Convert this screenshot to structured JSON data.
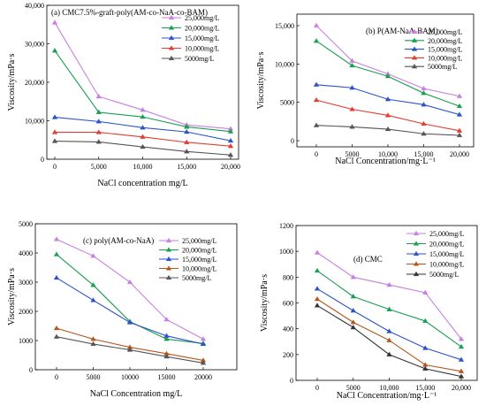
{
  "chart_data": [
    {
      "type": "line",
      "title": "(a) CMC7.5%-graft-poly(AM-co-NaA-co-BAM)",
      "xlabel": "NaCl concentration mg/L",
      "ylabel": "Viscosity/mPa·s",
      "categories": [
        "0",
        "5,000",
        "10,000",
        "15,000",
        "20,000"
      ],
      "yticks": [
        "0",
        "10,000",
        "20,000",
        "30,000",
        "40,000"
      ],
      "ylim": [
        0,
        40000
      ],
      "legend": "top-right",
      "series": [
        {
          "name": "25,000mg/L",
          "color": "#c77fe0",
          "values": [
            35500,
            16300,
            12800,
            8900,
            7900
          ]
        },
        {
          "name": "20,000mg/L",
          "color": "#1a9e52",
          "values": [
            28200,
            12200,
            11000,
            8400,
            7200
          ]
        },
        {
          "name": "15,000mg/L",
          "color": "#2b52c8",
          "values": [
            10900,
            9800,
            8200,
            7100,
            4800
          ]
        },
        {
          "name": "10,000mg/L",
          "color": "#e53b30",
          "values": [
            7000,
            7000,
            5800,
            4400,
            3400
          ]
        },
        {
          "name": "5000mg/L",
          "color": "#555555",
          "values": [
            4700,
            4500,
            3200,
            2000,
            1100
          ]
        }
      ]
    },
    {
      "type": "line",
      "title": "(b) P(AM-NaA-BAM)",
      "xlabel": "NaCl Concentration/mg·L⁻¹",
      "ylabel": "Viscosity/mPa·s",
      "categories": [
        "0",
        "5000",
        "10,000",
        "15,000",
        "20,000"
      ],
      "yticks": [
        "0",
        "5000",
        "10,000",
        "15,000"
      ],
      "ylim": [
        -800,
        16500
      ],
      "legend": "top-right",
      "series": [
        {
          "name": "25,000mg/L",
          "color": "#c77fe0",
          "values": [
            15000,
            10400,
            8700,
            6800,
            5800
          ]
        },
        {
          "name": "20,000mg/L",
          "color": "#1a9e52",
          "values": [
            13000,
            9800,
            8400,
            6200,
            4500
          ]
        },
        {
          "name": "15,000mg/L",
          "color": "#2b52c8",
          "values": [
            7300,
            6900,
            5400,
            4700,
            3400
          ]
        },
        {
          "name": "10,000mg/L",
          "color": "#e53b30",
          "values": [
            5300,
            4100,
            3300,
            2200,
            1300
          ]
        },
        {
          "name": "5000mg/L",
          "color": "#555555",
          "values": [
            2000,
            1800,
            1500,
            900,
            700
          ]
        }
      ]
    },
    {
      "type": "line",
      "title": "(c) poly(AM-co-NaA)",
      "xlabel": "NaCl Concentration mg/L",
      "ylabel": "Viscosity/mPa·s",
      "categories": [
        "0",
        "5000",
        "10000",
        "15000",
        "20000"
      ],
      "yticks": [
        "0",
        "1000",
        "2000",
        "3000",
        "4000",
        "5000"
      ],
      "ylim": [
        0,
        5000
      ],
      "legend": "top-right",
      "series": [
        {
          "name": "25,000mg/L",
          "color": "#c77fe0",
          "values": [
            4470,
            3900,
            3000,
            1720,
            1050
          ]
        },
        {
          "name": "20,000mg/L",
          "color": "#1a9e52",
          "values": [
            3950,
            2900,
            1650,
            1050,
            900
          ]
        },
        {
          "name": "15,000mg/L",
          "color": "#2b52c8",
          "values": [
            3150,
            2380,
            1620,
            1160,
            880
          ]
        },
        {
          "name": "10,000mg/L",
          "color": "#b5561c",
          "values": [
            1420,
            1050,
            770,
            550,
            320
          ]
        },
        {
          "name": "5000mg/L",
          "color": "#555555",
          "values": [
            1130,
            880,
            680,
            450,
            230
          ]
        }
      ]
    },
    {
      "type": "line",
      "title": "(d) CMC",
      "xlabel": "NaCl Concentration/mg·L⁻¹",
      "ylabel": "Viscosity/mPa·s",
      "categories": [
        "0",
        "5000",
        "10,000",
        "15,000",
        "20,000"
      ],
      "yticks": [
        "0",
        "200",
        "400",
        "600",
        "800",
        "1000",
        "1200"
      ],
      "ylim": [
        0,
        1200
      ],
      "legend": "top-right",
      "series": [
        {
          "name": "25,000mg/L",
          "color": "#c77fe0",
          "values": [
            990,
            800,
            740,
            680,
            320
          ]
        },
        {
          "name": "20,000mg/L",
          "color": "#1a9e52",
          "values": [
            850,
            650,
            550,
            460,
            260
          ]
        },
        {
          "name": "15,000mg/L",
          "color": "#2b52c8",
          "values": [
            710,
            540,
            380,
            250,
            160
          ]
        },
        {
          "name": "10,000mg/L",
          "color": "#b5561c",
          "values": [
            630,
            450,
            310,
            120,
            70
          ]
        },
        {
          "name": "5000mg/L",
          "color": "#333333",
          "values": [
            580,
            410,
            200,
            90,
            30
          ]
        }
      ]
    }
  ]
}
